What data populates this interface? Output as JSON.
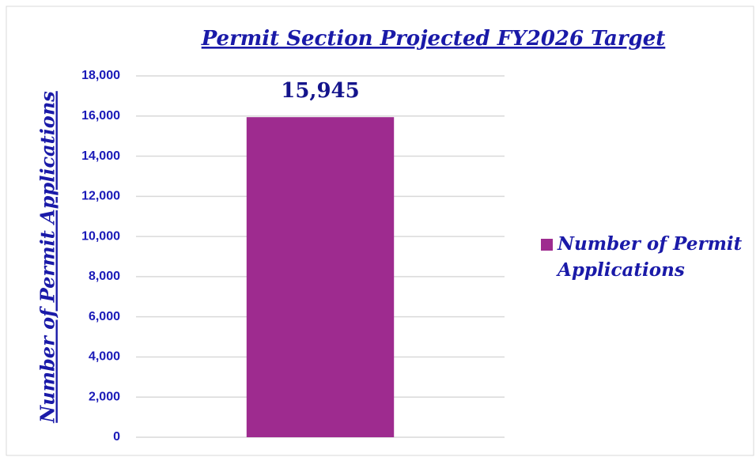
{
  "chart_data": {
    "type": "bar",
    "title": "Permit Section Projected FY2026 Target",
    "y_label": "Number of Permit Applications",
    "categories": [
      null
    ],
    "series": [
      {
        "name": "Number of Permit Applications",
        "color": "#9e2b8f",
        "values": [
          15945
        ],
        "value_labels": [
          "15,945"
        ]
      }
    ],
    "ylim": [
      0,
      18000
    ],
    "yticks": [
      {
        "value": 0,
        "label": "0"
      },
      {
        "value": 2000,
        "label": "2,000"
      },
      {
        "value": 4000,
        "label": "4,000"
      },
      {
        "value": 6000,
        "label": "6,000"
      },
      {
        "value": 8000,
        "label": "8,000"
      },
      {
        "value": 10000,
        "label": "10,000"
      },
      {
        "value": 12000,
        "label": "12,000"
      },
      {
        "value": 14000,
        "label": "14,000"
      },
      {
        "value": 16000,
        "label": "16,000"
      },
      {
        "value": 18000,
        "label": "18,000"
      }
    ],
    "grid": true,
    "legend": "right"
  }
}
